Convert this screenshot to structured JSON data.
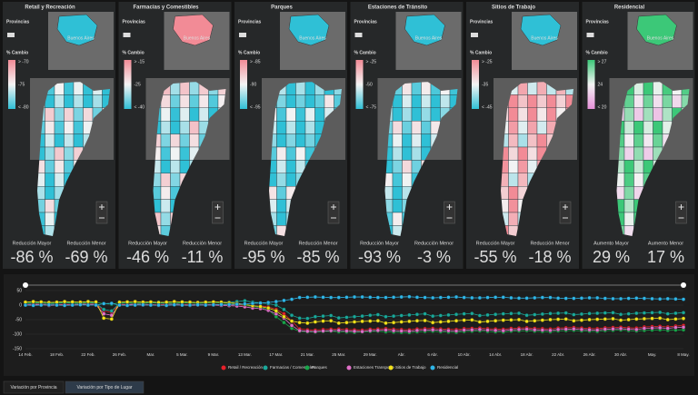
{
  "panels": [
    {
      "title": "Retail y Recreación",
      "legend_title": "Provincias",
      "scale_title": "% Cambio",
      "scale_labels": [
        "> -70",
        "-75",
        "< -80"
      ],
      "scale_colors": [
        "#f28b96",
        "#f4f4f4",
        "#2fc0d6"
      ],
      "inset_color": "#2fc0d6",
      "inset_label": "Buenos Aires",
      "kpis": [
        {
          "label": "Reducción Mayor",
          "value": "-86 %"
        },
        {
          "label": "Reducción Menor",
          "value": "-69 %"
        }
      ]
    },
    {
      "title": "Farmacias y Comestibles",
      "legend_title": "Provincias",
      "scale_title": "% Cambio",
      "scale_labels": [
        "> -15",
        "-25",
        "< -40"
      ],
      "scale_colors": [
        "#f28b96",
        "#f4f4f4",
        "#2fc0d6"
      ],
      "inset_color": "#f28b96",
      "inset_label": "Buenos Aires",
      "kpis": [
        {
          "label": "Reducción Mayor",
          "value": "-46 %"
        },
        {
          "label": "Reducción Menor",
          "value": "-11 %"
        }
      ]
    },
    {
      "title": "Parques",
      "legend_title": "Provincias",
      "scale_title": "% Cambio",
      "scale_labels": [
        "> -85",
        "-90",
        "< -95"
      ],
      "scale_colors": [
        "#f28b96",
        "#f4f4f4",
        "#2fc0d6"
      ],
      "inset_color": "#2fc0d6",
      "inset_label": "Buenos Aires",
      "kpis": [
        {
          "label": "Reducción Mayor",
          "value": "-95 %"
        },
        {
          "label": "Reducción Menor",
          "value": "-85 %"
        }
      ]
    },
    {
      "title": "Estaciones de Tránsito",
      "legend_title": "Provincias",
      "scale_title": "% Cambio",
      "scale_labels": [
        "> -25",
        "-50",
        "< -75"
      ],
      "scale_colors": [
        "#f28b96",
        "#f4f4f4",
        "#2fc0d6"
      ],
      "inset_color": "#2fc0d6",
      "inset_label": "Buenos Aires",
      "kpis": [
        {
          "label": "Reducción Mayor",
          "value": "-93 %"
        },
        {
          "label": "Reducción Menor",
          "value": "-3 %"
        }
      ]
    },
    {
      "title": "Sitios de Trabajo",
      "legend_title": "Provincias",
      "scale_title": "% Cambio",
      "scale_labels": [
        "> -25",
        "-35",
        "< -45"
      ],
      "scale_colors": [
        "#f28b96",
        "#f4f4f4",
        "#2fc0d6"
      ],
      "inset_color": "#2fc0d6",
      "inset_label": "Buenos Aires",
      "kpis": [
        {
          "label": "Reducción Mayor",
          "value": "-55 %"
        },
        {
          "label": "Reducción Menor",
          "value": "-18 %"
        }
      ]
    },
    {
      "title": "Residencial",
      "legend_title": "Provincias",
      "scale_title": "% Cambio",
      "scale_labels": [
        "> 27",
        "24",
        "< 20"
      ],
      "scale_colors": [
        "#3cc878",
        "#f4f4f4",
        "#e690d8"
      ],
      "inset_color": "#3cc878",
      "inset_label": "Buenos Aires",
      "kpis": [
        {
          "label": "Aumento Mayor",
          "value": "29 %"
        },
        {
          "label": "Aumento Menor",
          "value": "17 %"
        }
      ]
    }
  ],
  "chart_data": {
    "type": "line",
    "categories": [
      "14 Feb.",
      null,
      null,
      null,
      "18 Feb.",
      null,
      null,
      null,
      "22 Feb.",
      null,
      null,
      null,
      "26 Feb.",
      null,
      null,
      null,
      "Mar.",
      null,
      null,
      null,
      "5 Mar.",
      null,
      null,
      null,
      "9 Mar.",
      null,
      null,
      null,
      "13 Mar.",
      null,
      null,
      null,
      "17 Mar.",
      null,
      null,
      null,
      "21 Mar.",
      null,
      null,
      null,
      "25 Mar.",
      null,
      null,
      null,
      "29 Mar.",
      null,
      null,
      null,
      "Abr.",
      null,
      null,
      null,
      "6 Abr.",
      null,
      null,
      null,
      "10 Abr.",
      null,
      null,
      null,
      "14 Abr.",
      null,
      null,
      null,
      "18 Abr.",
      null,
      null,
      null,
      "22 Abr.",
      null,
      null,
      null,
      "26 Abr.",
      null,
      null,
      null,
      "30 Abr.",
      null,
      null,
      null,
      "May.",
      null,
      null,
      null,
      "8 May."
    ],
    "series": [
      {
        "name": "Retail / Recreación",
        "color": "#e8202a",
        "values": [
          2,
          3,
          4,
          1,
          2,
          3,
          2,
          3,
          5,
          4,
          -20,
          -25,
          3,
          2,
          4,
          3,
          2,
          1,
          3,
          4,
          2,
          3,
          1,
          2,
          3,
          2,
          1,
          2,
          -2,
          -4,
          -3,
          -6,
          -15,
          -30,
          -55,
          -82,
          -85,
          -86,
          -84,
          -83,
          -82,
          -84,
          -85,
          -86,
          -83,
          -82,
          -81,
          -83,
          -84,
          -85,
          -82,
          -81,
          -80,
          -82,
          -83,
          -84,
          -81,
          -80,
          -79,
          -81,
          -82,
          -83,
          -80,
          -79,
          -78,
          -80,
          -81,
          -82,
          -79,
          -78,
          -77,
          -79,
          -80,
          -81,
          -78,
          -77,
          -76,
          -78,
          -79,
          -75,
          -74,
          -73,
          -75,
          -72,
          -70
        ]
      },
      {
        "name": "Farmacias / Comestibles",
        "color": "#1aa89a",
        "values": [
          5,
          6,
          7,
          5,
          6,
          8,
          6,
          5,
          7,
          6,
          -15,
          -20,
          6,
          7,
          5,
          6,
          8,
          7,
          6,
          5,
          7,
          8,
          6,
          7,
          9,
          8,
          10,
          12,
          15,
          10,
          8,
          5,
          0,
          -15,
          -35,
          -45,
          -46,
          -40,
          -38,
          -36,
          -44,
          -42,
          -40,
          -38,
          -35,
          -33,
          -40,
          -38,
          -36,
          -34,
          -32,
          -30,
          -38,
          -36,
          -34,
          -32,
          -30,
          -29,
          -36,
          -34,
          -32,
          -30,
          -29,
          -28,
          -35,
          -33,
          -31,
          -29,
          -28,
          -27,
          -33,
          -31,
          -29,
          -28,
          -27,
          -26,
          -32,
          -30,
          -28,
          -27,
          -26,
          -25,
          -30,
          -28,
          -26
        ]
      },
      {
        "name": "Parques",
        "color": "#18a54a",
        "values": [
          8,
          10,
          9,
          7,
          8,
          10,
          9,
          8,
          10,
          9,
          5,
          3,
          8,
          9,
          7,
          8,
          9,
          10,
          8,
          7,
          9,
          8,
          7,
          8,
          9,
          7,
          6,
          5,
          0,
          -5,
          -8,
          -15,
          -40,
          -60,
          -80,
          -90,
          -92,
          -93,
          -91,
          -90,
          -92,
          -93,
          -94,
          -92,
          -91,
          -90,
          -92,
          -93,
          -94,
          -95,
          -92,
          -91,
          -90,
          -92,
          -93,
          -94,
          -91,
          -90,
          -89,
          -91,
          -92,
          -93,
          -90,
          -89,
          -88,
          -90,
          -91,
          -92,
          -89,
          -88,
          -87,
          -89,
          -90,
          -91,
          -88,
          -87,
          -86,
          -88,
          -89,
          -87,
          -86,
          -85,
          -87,
          -86,
          -85
        ]
      },
      {
        "name": "Estaciones Transporte",
        "color": "#e070c8",
        "values": [
          0,
          1,
          2,
          -1,
          0,
          1,
          0,
          1,
          2,
          1,
          -30,
          -35,
          0,
          1,
          2,
          0,
          1,
          -1,
          0,
          1,
          0,
          -1,
          0,
          1,
          0,
          -1,
          -2,
          -3,
          -6,
          -10,
          -12,
          -18,
          -30,
          -45,
          -70,
          -88,
          -90,
          -91,
          -89,
          -88,
          -87,
          -89,
          -90,
          -91,
          -88,
          -87,
          -86,
          -88,
          -89,
          -90,
          -87,
          -86,
          -85,
          -87,
          -88,
          -89,
          -86,
          -85,
          -84,
          -86,
          -87,
          -88,
          -85,
          -84,
          -83,
          -85,
          -86,
          -87,
          -84,
          -83,
          -82,
          -84,
          -85,
          -86,
          -83,
          -82,
          -81,
          -83,
          -84,
          -80,
          -79,
          -78,
          -80,
          -77,
          -76
        ]
      },
      {
        "name": "Sitios de Trabajo",
        "color": "#f2e21a",
        "values": [
          10,
          12,
          11,
          9,
          10,
          12,
          11,
          10,
          12,
          11,
          -45,
          -48,
          10,
          11,
          12,
          10,
          11,
          9,
          10,
          12,
          11,
          10,
          9,
          10,
          11,
          10,
          8,
          6,
          2,
          -2,
          -5,
          -10,
          -20,
          -40,
          -55,
          -60,
          -62,
          -58,
          -55,
          -54,
          -62,
          -60,
          -58,
          -56,
          -55,
          -54,
          -62,
          -60,
          -58,
          -56,
          -54,
          -53,
          -60,
          -58,
          -56,
          -54,
          -52,
          -51,
          -58,
          -56,
          -54,
          -52,
          -51,
          -50,
          -56,
          -54,
          -52,
          -50,
          -49,
          -48,
          -54,
          -52,
          -50,
          -49,
          -48,
          -47,
          -52,
          -50,
          -48,
          -47,
          -46,
          -45,
          -50,
          -48,
          -46
        ]
      },
      {
        "name": "Residencial",
        "color": "#2fb6e8",
        "values": [
          0,
          -1,
          0,
          1,
          0,
          -1,
          0,
          1,
          0,
          0,
          5,
          6,
          0,
          -1,
          0,
          1,
          0,
          0,
          -1,
          1,
          0,
          0,
          1,
          0,
          1,
          2,
          2,
          3,
          4,
          6,
          7,
          9,
          12,
          16,
          20,
          26,
          27,
          28,
          27,
          26,
          26,
          27,
          28,
          28,
          27,
          26,
          26,
          27,
          28,
          29,
          27,
          26,
          25,
          26,
          27,
          28,
          26,
          25,
          25,
          26,
          27,
          27,
          25,
          24,
          24,
          25,
          26,
          26,
          24,
          23,
          23,
          24,
          25,
          25,
          23,
          22,
          22,
          23,
          24,
          23,
          22,
          21,
          22,
          21,
          20
        ]
      }
    ],
    "ylim": [
      -150,
      50
    ],
    "yticks": [
      50,
      0,
      -50,
      -100,
      -150
    ],
    "grid": true
  },
  "tabs": [
    "Variación por Provincia",
    "Variación por Tipo de Lugar"
  ]
}
